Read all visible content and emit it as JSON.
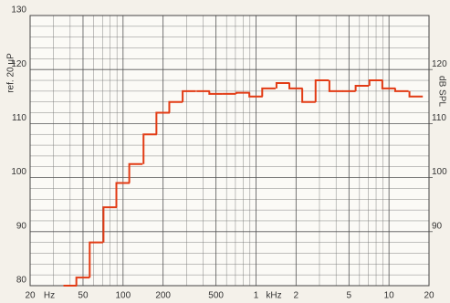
{
  "chart_data": {
    "type": "step",
    "y_label": "ref. 20 µP",
    "y2_label": "dB SPL",
    "x_units": [
      "Hz",
      "kHz"
    ],
    "x": [
      40,
      50,
      63,
      80,
      100,
      125,
      160,
      200,
      250,
      315,
      400,
      500,
      630,
      800,
      1000,
      1250,
      1600,
      2000,
      2500,
      3150,
      4000,
      5000,
      6300,
      8000,
      10000,
      12500,
      16000
    ],
    "values": [
      80,
      81.5,
      88,
      94.5,
      99,
      102.5,
      108,
      112,
      114,
      116,
      116,
      115.5,
      115.5,
      115.7,
      115,
      116.5,
      117.5,
      116.5,
      114,
      118,
      116,
      116,
      117,
      118,
      116.5,
      116,
      115
    ],
    "color": "#e23b14",
    "xscale": "log",
    "xlim": [
      20,
      20000
    ],
    "xticks": [
      20,
      50,
      100,
      200,
      500,
      {
        "value": 1000,
        "label": "1"
      },
      {
        "value": 2000,
        "label": "2"
      },
      {
        "value": 5000,
        "label": "5"
      },
      {
        "value": 10000,
        "label": "10"
      },
      {
        "value": 20000,
        "label": "20"
      }
    ],
    "xminor": [
      30,
      40,
      60,
      70,
      80,
      90,
      300,
      400,
      600,
      700,
      800,
      900,
      3000,
      4000,
      6000,
      7000,
      8000,
      9000
    ],
    "ylim": [
      80,
      130
    ],
    "yticks": [
      80,
      90,
      100,
      110,
      120,
      130
    ],
    "yminor": [
      82,
      84,
      86,
      88,
      92,
      94,
      96,
      98,
      102,
      104,
      106,
      108,
      112,
      114,
      116,
      118,
      122,
      124,
      126,
      128
    ],
    "y2lim": [
      80,
      130
    ],
    "y2ticks": [
      90,
      100,
      110,
      120
    ],
    "grid": true
  }
}
